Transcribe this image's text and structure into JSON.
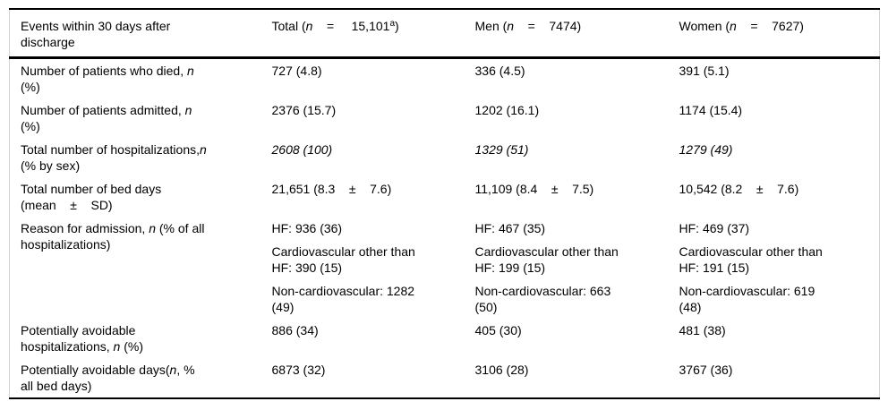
{
  "table": {
    "header": {
      "col0": "Events within 30 days after\ndischarge",
      "col1": "Total (*n*    =     15,101^a^)",
      "col2": "Men (*n*    =    7474)",
      "col3": "Women (*n*    =    7627)"
    },
    "rows": [
      {
        "label": "Number of patients who died, *n*\n(%)",
        "total": "727 (4.8)",
        "men": "336 (4.5)",
        "women": "391 (5.1)"
      },
      {
        "label": "Number of patients admitted, *n*\n(%)",
        "total": "2376 (15.7)",
        "men": "1202 (16.1)",
        "women": "1174 (15.4)"
      },
      {
        "label": "Total number of hospitalizations,*n*\n(% by sex)",
        "total": "*2608 (100)*",
        "men": "*1329 (51)*",
        "women": "*1279 (49)*"
      },
      {
        "label": "Total number of bed days\n(mean    ±    SD)",
        "total": "21,651 (8.3    ±    7.6)",
        "men": "11,109 (8.4    ±    7.5)",
        "women": "10,542 (8.2    ±    7.6)"
      },
      {
        "label": "Reason for admission, *n* (% of all\nhospitalizations)",
        "total": [
          "HF: 936 (36)",
          "Cardiovascular other than\nHF: 390 (15)",
          "Non-cardiovascular: 1282\n(49)"
        ],
        "men": [
          "HF: 467 (35)",
          "Cardiovascular other than\nHF: 199 (15)",
          "Non-cardiovascular: 663\n(50)"
        ],
        "women": [
          "HF: 469 (37)",
          "Cardiovascular other than\nHF: 191 (15)",
          "Non-cardiovascular: 619\n(48)"
        ]
      },
      {
        "label": "Potentially avoidable\nhospitalizations, *n* (%)",
        "total": "886 (34)",
        "men": "405 (30)",
        "women": "481 (38)"
      },
      {
        "label": "Potentially avoidable days(*n*, %\nall bed days)",
        "total": "6873 (32)",
        "men": "3106 (28)",
        "women": "3767 (36)"
      }
    ]
  }
}
